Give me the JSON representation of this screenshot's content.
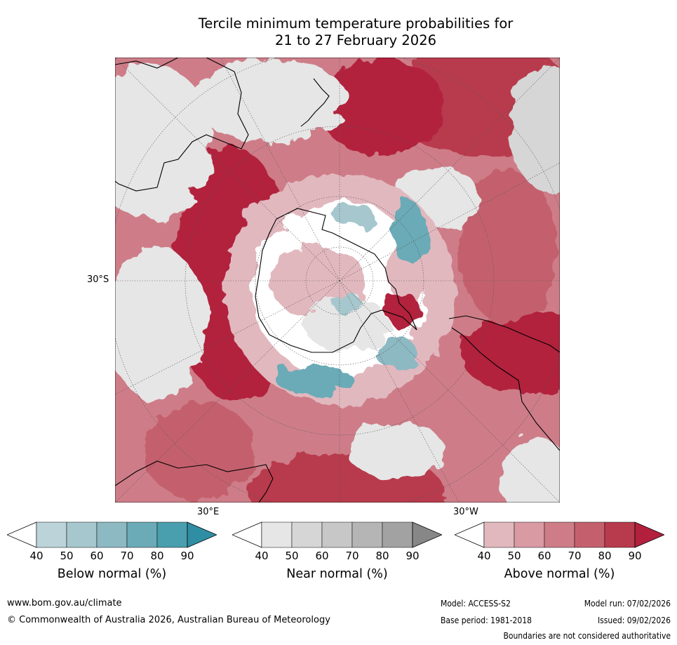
{
  "title_line1": "Tercile minimum temperature probabilities for",
  "title_line2": "21 to 27 February 2026",
  "map": {
    "lat_label": "30°S",
    "lon_label_east": "30°E",
    "lon_label_west": "30°W"
  },
  "legends": [
    {
      "label": "Below normal (%)",
      "ticks": [
        "40",
        "50",
        "60",
        "70",
        "80",
        "90"
      ],
      "colors": [
        "#ffffff",
        "#bcd3da",
        "#a6c7cd",
        "#8db9c3",
        "#6aabb7",
        "#4a9fae",
        "#2f8ea3"
      ]
    },
    {
      "label": "Near normal (%)",
      "ticks": [
        "40",
        "50",
        "60",
        "70",
        "80",
        "90"
      ],
      "colors": [
        "#ffffff",
        "#e6e6e6",
        "#d6d6d6",
        "#c7c7c7",
        "#b5b5b5",
        "#a2a2a2",
        "#878787"
      ]
    },
    {
      "label": "Above normal (%)",
      "ticks": [
        "40",
        "50",
        "60",
        "70",
        "80",
        "90"
      ],
      "colors": [
        "#ffffff",
        "#e2b8bf",
        "#d99aa3",
        "#ce7d88",
        "#c4606d",
        "#b83a4d",
        "#b2203d"
      ]
    }
  ],
  "footer": {
    "website": "www.bom.gov.au/climate",
    "copyright": "© Commonwealth of Australia 2026, Australian Bureau of Meteorology",
    "model": "Model: ACCESS-S2",
    "model_run": "Model run: 07/02/2026",
    "base_period": "Base period: 1981-2018",
    "issued": "Issued: 09/02/2026",
    "disclaimer": "Boundaries are not considered authoritative"
  }
}
